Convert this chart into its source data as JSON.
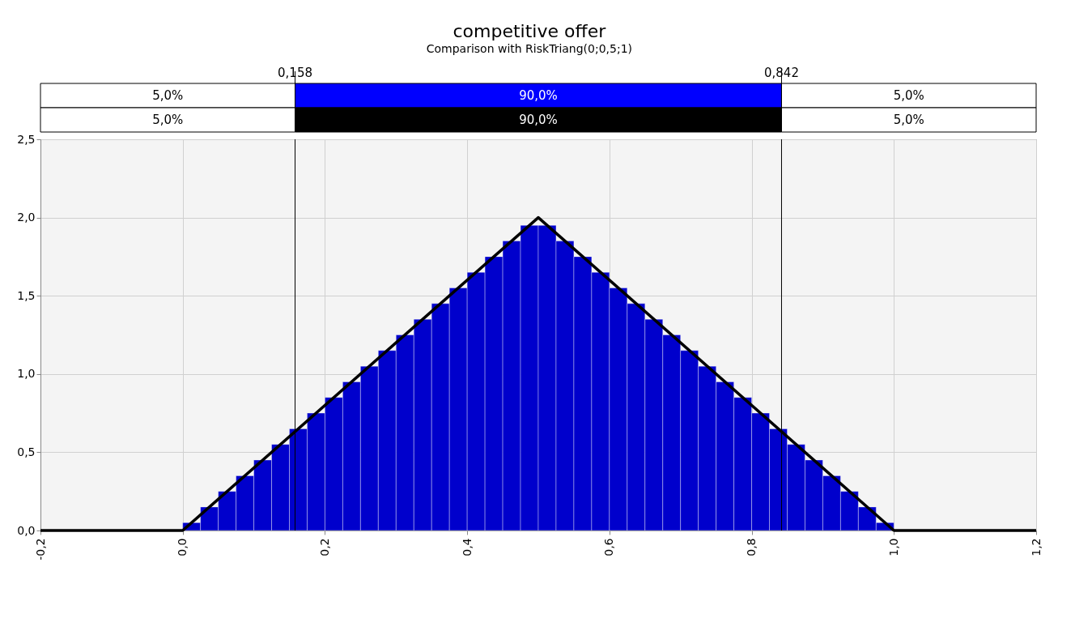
{
  "chart_data": {
    "type": "histogram",
    "title": "competitive offer",
    "subtitle": "Comparison with RiskTriang(0;0,5;1)",
    "bins": [
      0,
      0.025,
      0.05,
      0.075,
      0.1,
      0.125,
      0.15,
      0.175,
      0.2,
      0.225,
      0.25,
      0.275,
      0.3,
      0.325,
      0.35,
      0.375,
      0.4,
      0.425,
      0.45,
      0.475,
      0.5,
      0.525,
      0.55,
      0.575,
      0.6,
      0.625,
      0.65,
      0.675,
      0.7,
      0.725,
      0.75,
      0.775,
      0.8,
      0.825,
      0.85,
      0.875,
      0.9,
      0.925,
      0.95,
      0.975,
      1
    ],
    "series": [
      {
        "color": "#0000cc",
        "values": [
          0.05,
          0.15,
          0.25,
          0.35,
          0.45,
          0.55,
          0.65,
          0.75,
          0.85,
          0.95,
          1.05,
          1.15,
          1.25,
          1.35,
          1.45,
          1.55,
          1.65,
          1.75,
          1.85,
          1.95,
          1.95,
          1.85,
          1.75,
          1.65,
          1.55,
          1.45,
          1.35,
          1.25,
          1.15,
          1.05,
          0.95,
          0.85,
          0.75,
          0.65,
          0.55,
          0.45,
          0.35,
          0.25,
          0.15,
          0.05
        ]
      },
      {
        "type": "line",
        "color": "#000000",
        "x": [
          -0.2,
          0,
          0.5,
          1,
          1.2
        ],
        "values": [
          0,
          0,
          2,
          0,
          0
        ]
      }
    ],
    "xlim": [
      -0.2,
      1.2
    ],
    "xticks": [
      {
        "value": -0.2,
        "label": "-0,2"
      },
      {
        "value": 0,
        "label": "0,0"
      },
      {
        "value": 0.2,
        "label": "0,2"
      },
      {
        "value": 0.4,
        "label": "0,4"
      },
      {
        "value": 0.6,
        "label": "0,6"
      },
      {
        "value": 0.8,
        "label": "0,8"
      },
      {
        "value": 1,
        "label": "1,0"
      },
      {
        "value": 1.2,
        "label": "1,2"
      }
    ],
    "ylim": [
      0,
      2.5
    ],
    "yticks": [
      {
        "value": 0,
        "label": "0,0"
      },
      {
        "value": 0.5,
        "label": "0,5"
      },
      {
        "value": 1,
        "label": "1,0"
      },
      {
        "value": 1.5,
        "label": "1,5"
      },
      {
        "value": 2,
        "label": "2,0"
      },
      {
        "value": 2.5,
        "label": "2,5"
      }
    ],
    "grid": true,
    "ref_lines": [
      {
        "axis": "x",
        "value": 0.158,
        "label": "0,158"
      },
      {
        "axis": "x",
        "value": 0.842,
        "label": "0,842"
      }
    ],
    "annotations": [
      "5,0%",
      "90,0%",
      "5,0%",
      "5,0%",
      "90,0%",
      "5,0%"
    ]
  }
}
